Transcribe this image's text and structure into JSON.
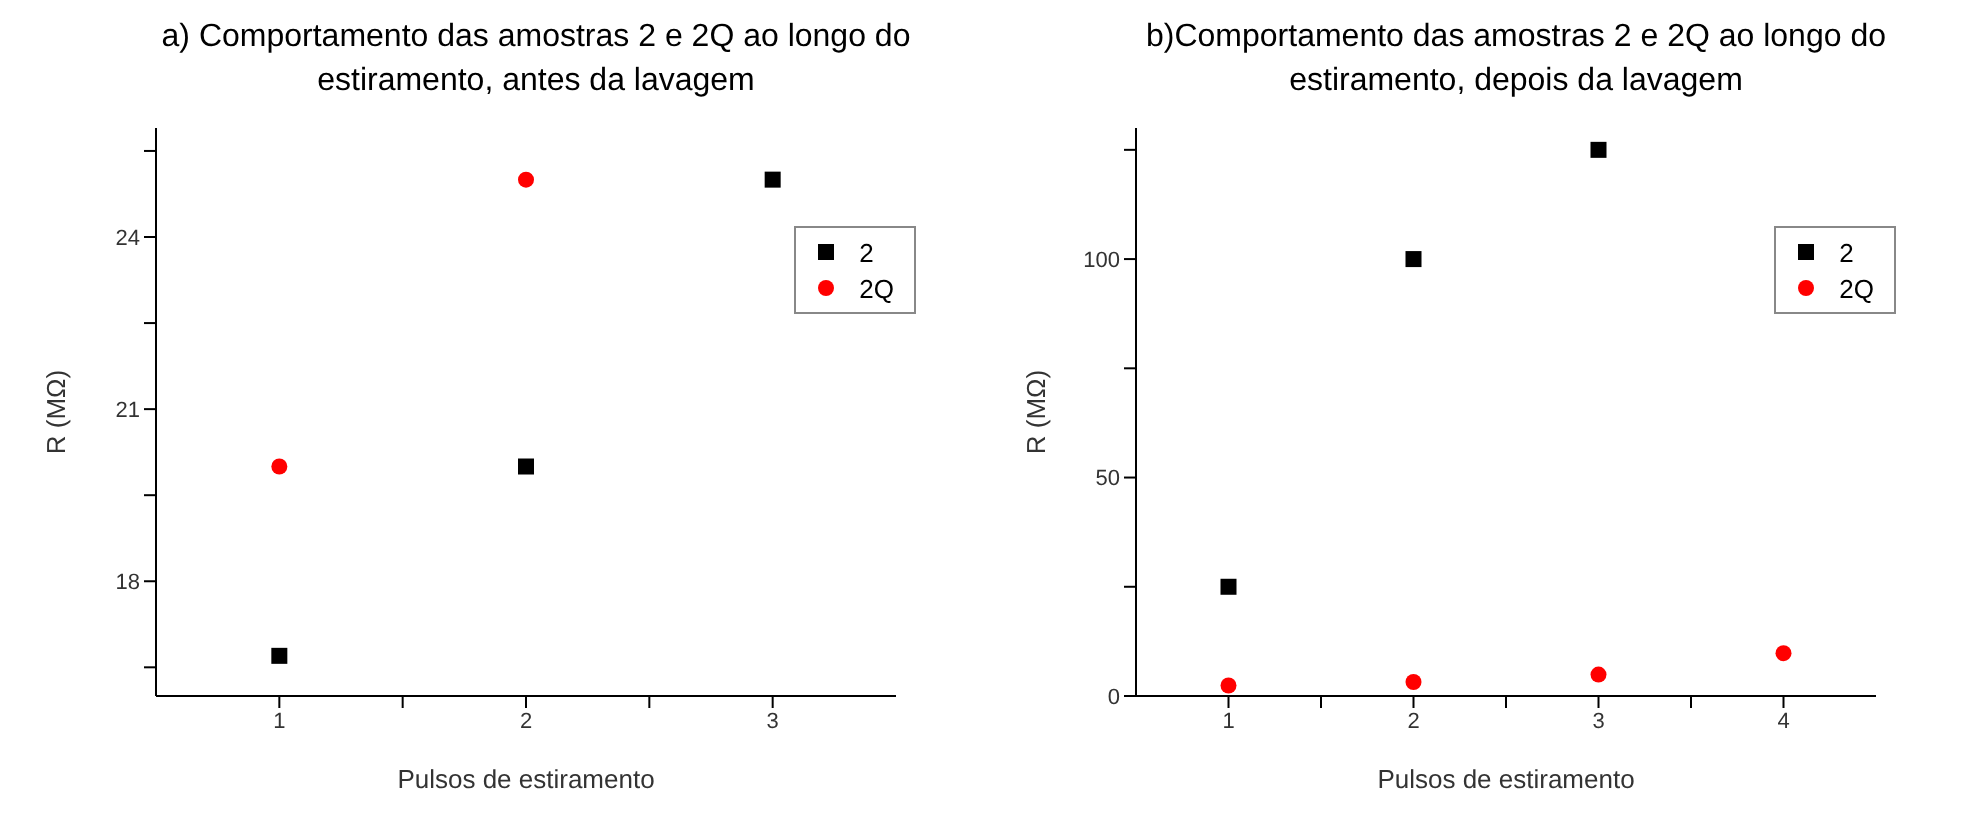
{
  "chart_data": [
    {
      "type": "scatter",
      "title": "a) Comportamento das amostras 2 e 2Q ao longo do estiramento, antes da lavagem",
      "xlabel": "Pulsos de estiramento",
      "ylabel": "R (MΩ)",
      "xlim": [
        0.5,
        3.5
      ],
      "xticks": [
        1,
        {
          "value": 1.5,
          "label": null
        },
        2,
        {
          "value": 2.5,
          "label": null
        },
        3
      ],
      "ylim": [
        16,
        25.9
      ],
      "yticks": [
        {
          "value": 16.5,
          "label": null
        },
        18,
        {
          "value": 19.5,
          "label": null
        },
        21,
        {
          "value": 22.5,
          "label": null
        },
        24,
        {
          "value": 25.5,
          "label": null
        }
      ],
      "grid": false,
      "legend": "right",
      "series": [
        {
          "name": "2",
          "color": "#000000",
          "marker": "square",
          "x": [
            1,
            2,
            3
          ],
          "values": [
            16.7,
            20.0,
            25.0
          ]
        },
        {
          "name": "2Q",
          "color": "#ff0000",
          "marker": "circle",
          "x": [
            1,
            2
          ],
          "values": [
            20.0,
            25.0
          ]
        }
      ]
    },
    {
      "type": "scatter",
      "title": "b)Comportamento das amostras 2 e 2Q ao longo do estiramento, depois da lavagem",
      "xlabel": "Pulsos de estiramento",
      "ylabel": "R (MΩ)",
      "xlim": [
        0.5,
        4.5
      ],
      "xticks": [
        1,
        {
          "value": 1.5,
          "label": null
        },
        2,
        {
          "value": 2.5,
          "label": null
        },
        3,
        {
          "value": 3.5,
          "label": null
        },
        4
      ],
      "ylim": [
        0,
        130
      ],
      "yticks": [
        0,
        {
          "value": 25,
          "label": null
        },
        50,
        {
          "value": 75,
          "label": null
        },
        100,
        {
          "value": 125,
          "label": null
        }
      ],
      "grid": false,
      "legend": "right",
      "series": [
        {
          "name": "2",
          "color": "#000000",
          "marker": "square",
          "x": [
            1,
            2,
            3
          ],
          "values": [
            25,
            100,
            125
          ]
        },
        {
          "name": "2Q",
          "color": "#ff0000",
          "marker": "circle",
          "x": [
            1,
            2,
            3,
            4
          ],
          "values": [
            2.4,
            3.2,
            4.9,
            9.8
          ]
        }
      ]
    }
  ]
}
